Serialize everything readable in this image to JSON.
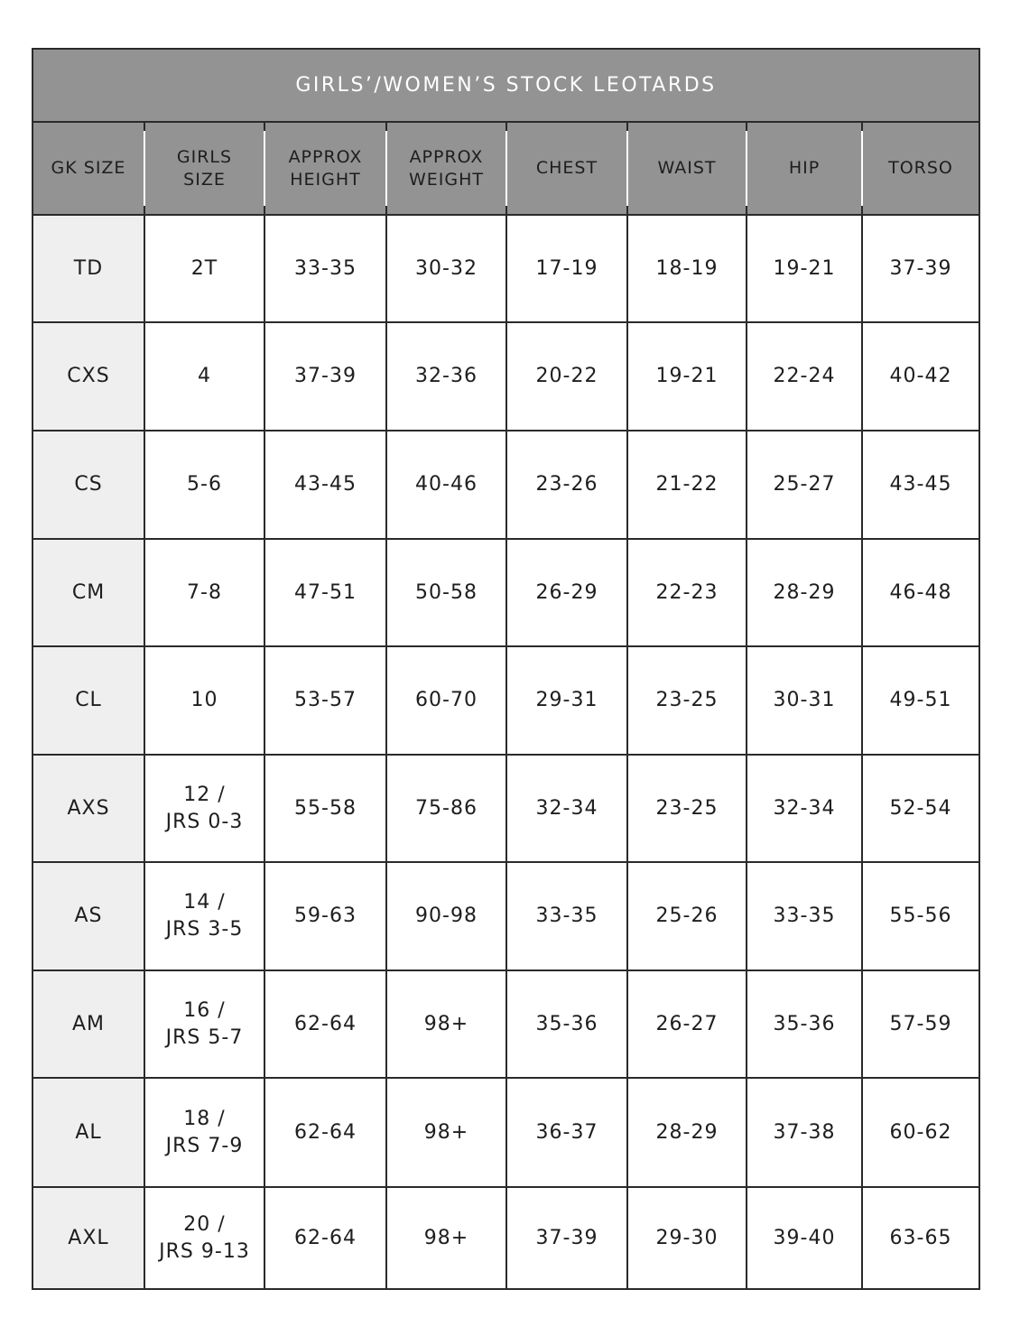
{
  "title": "GIRLS’/WOMEN’S STOCK LEOTARDS",
  "headers": [
    "GK SIZE",
    "GIRLS\nSIZE",
    "APPROX\nHEIGHT",
    "APPROX\nWEIGHT",
    "CHEST",
    "WAIST",
    "HIP",
    "TORSO"
  ],
  "rows": [
    [
      "TD",
      "2T",
      "33-35",
      "30-32",
      "17-19",
      "18-19",
      "19-21",
      "37-39"
    ],
    [
      "CXS",
      "4",
      "37-39",
      "32-36",
      "20-22",
      "19-21",
      "22-24",
      "40-42"
    ],
    [
      "CS",
      "5-6",
      "43-45",
      "40-46",
      "23-26",
      "21-22",
      "25-27",
      "43-45"
    ],
    [
      "CM",
      "7-8",
      "47-51",
      "50-58",
      "26-29",
      "22-23",
      "28-29",
      "46-48"
    ],
    [
      "CL",
      "10",
      "53-57",
      "60-70",
      "29-31",
      "23-25",
      "30-31",
      "49-51"
    ],
    [
      "AXS",
      "12 /\nJRS 0-3",
      "55-58",
      "75-86",
      "32-34",
      "23-25",
      "32-34",
      "52-54"
    ],
    [
      "AS",
      "14 /\nJRS 3-5",
      "59-63",
      "90-98",
      "33-35",
      "25-26",
      "33-35",
      "55-56"
    ],
    [
      "AM",
      "16 /\nJRS 5-7",
      "62-64",
      "98+",
      "35-36",
      "26-27",
      "35-36",
      "57-59"
    ],
    [
      "AL",
      "18 /\nJRS 7-9",
      "62-64",
      "98+",
      "36-37",
      "28-29",
      "37-38",
      "60-62"
    ],
    [
      "AXL",
      "20 /\nJRS 9-13",
      "62-64",
      "98+",
      "37-39",
      "29-30",
      "39-40",
      "63-65"
    ]
  ],
  "colors": {
    "header_bg": "#939393",
    "first_col_bg": "#efefef",
    "border": "#2a2a2a"
  }
}
